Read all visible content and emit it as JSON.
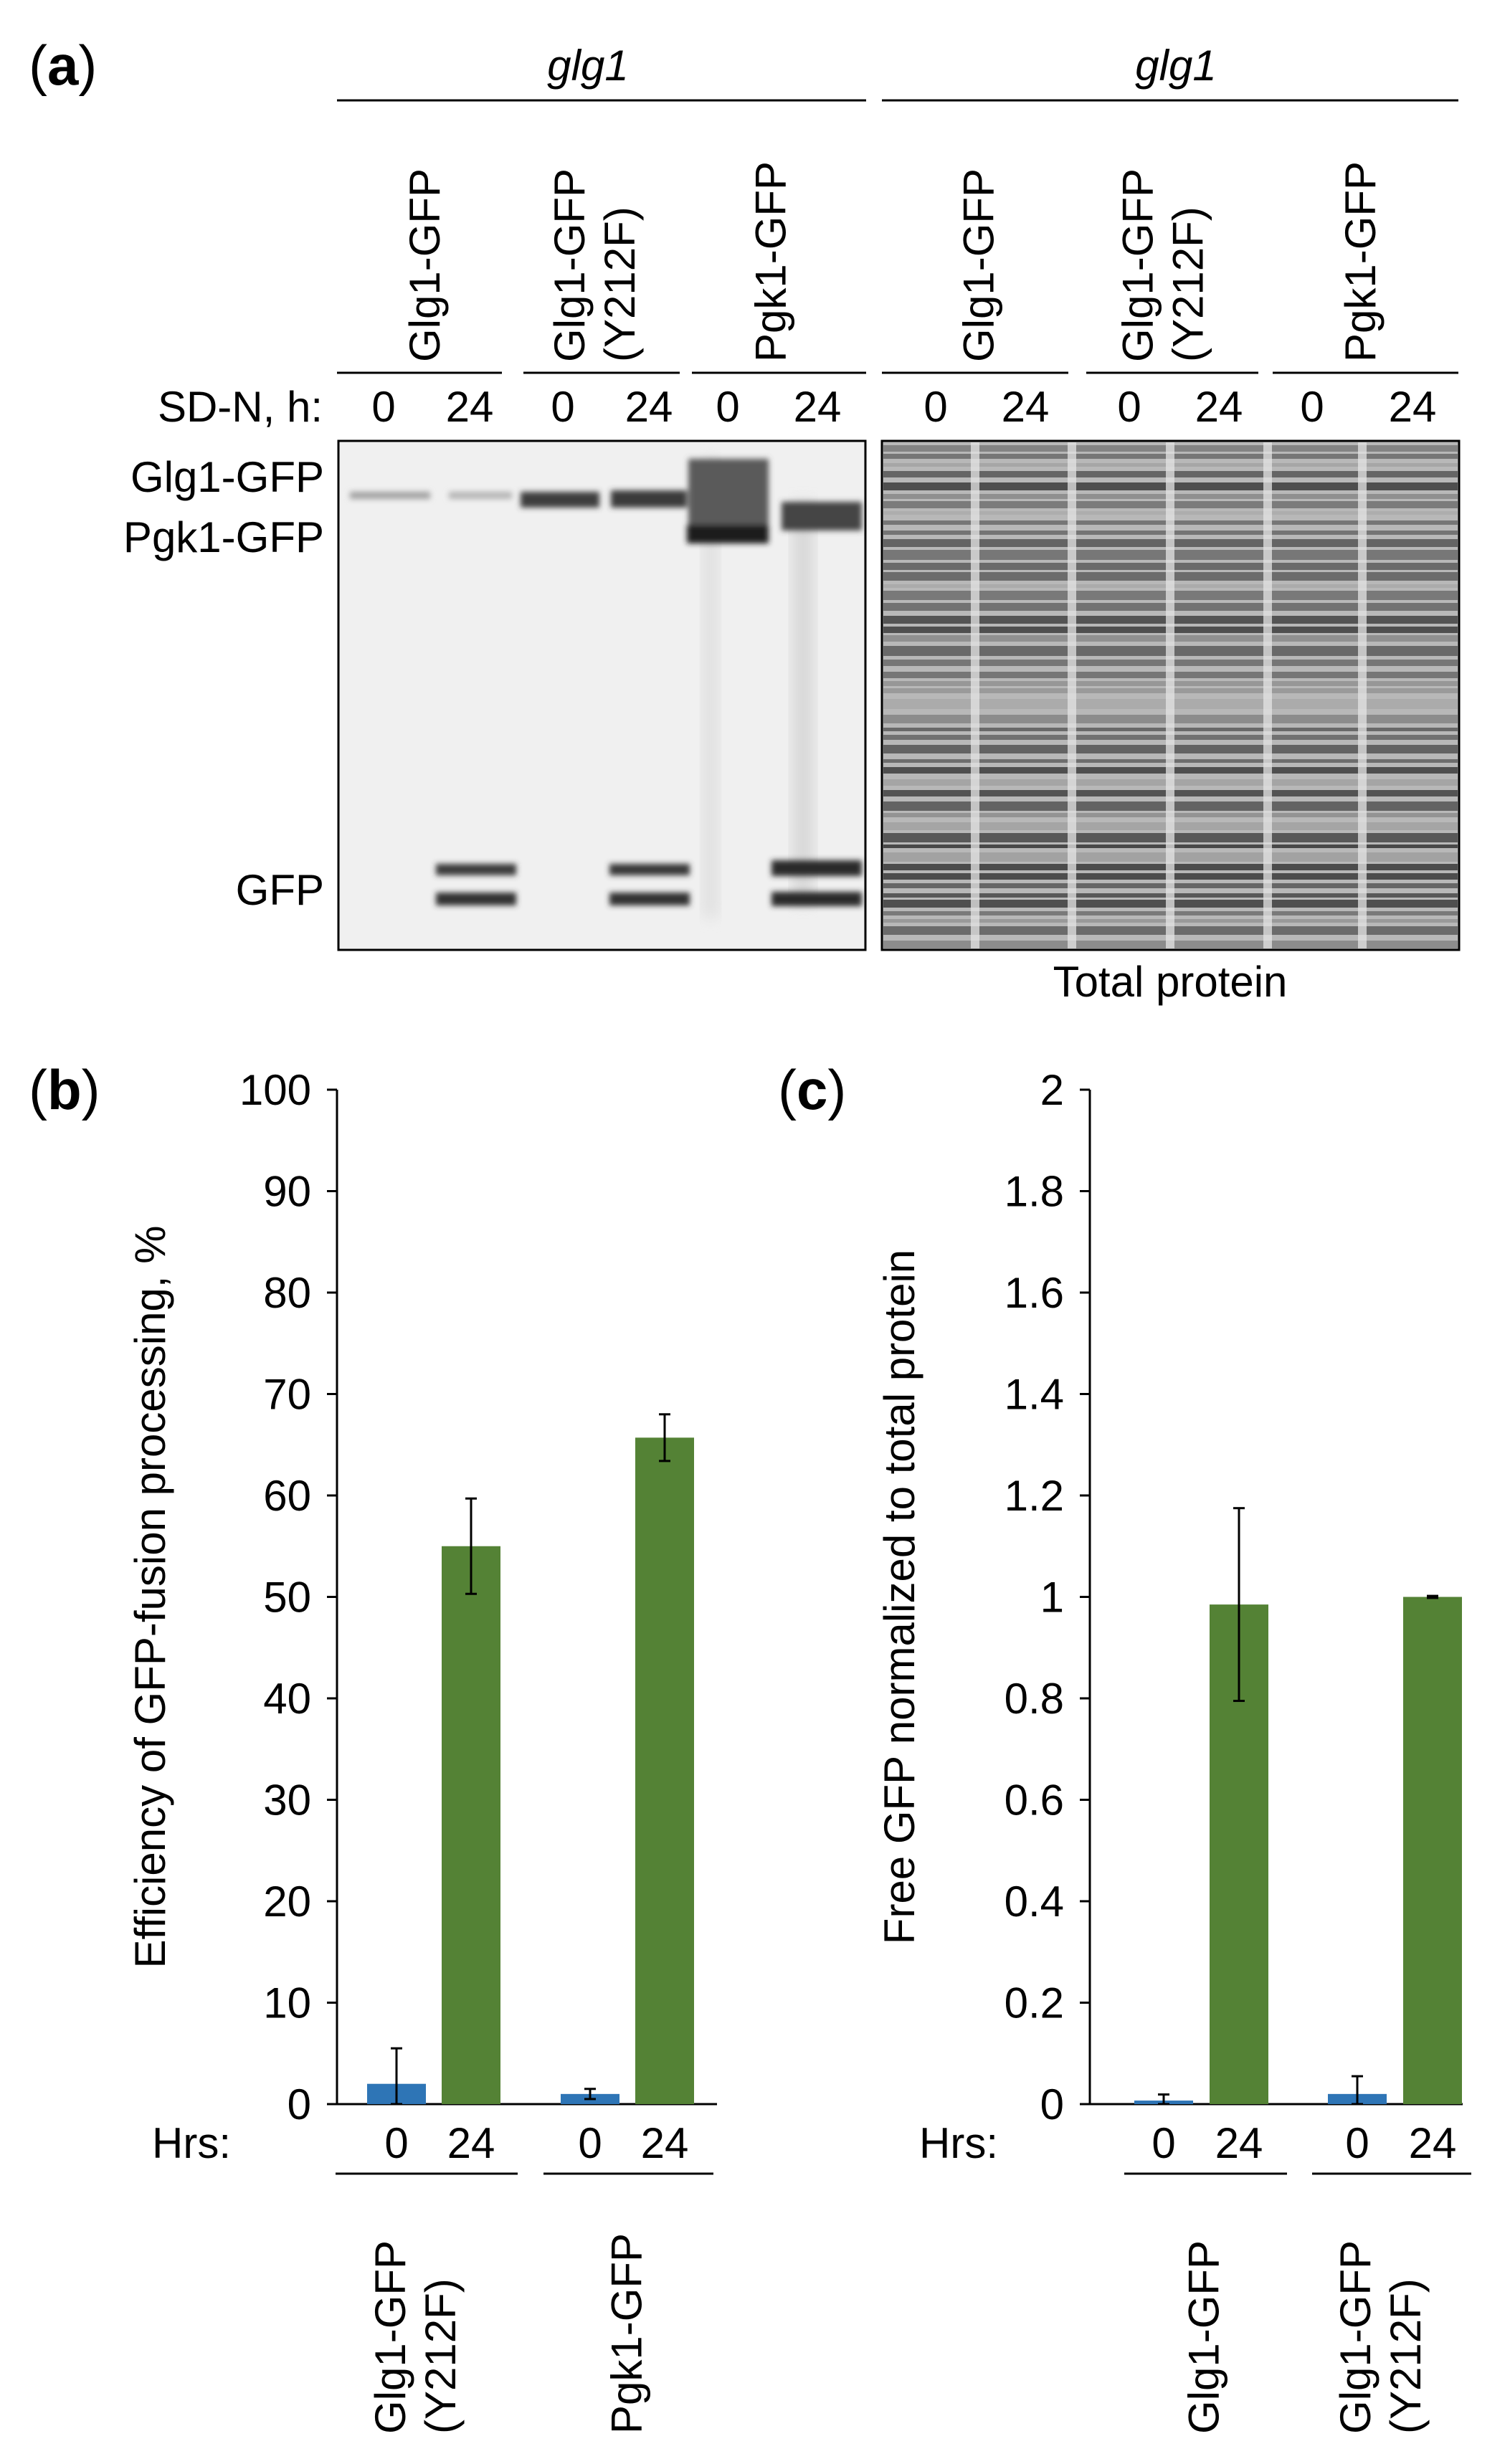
{
  "panel_a": {
    "label_letter": "a",
    "strain_left": "glg1",
    "strain_right": "glg1",
    "lane_groups_left": [
      {
        "line1": "Glg1-GFP",
        "line2": ""
      },
      {
        "line1": "Glg1-GFP",
        "line2": "(Y212F)"
      },
      {
        "line1": "Pgk1-GFP",
        "line2": ""
      }
    ],
    "lane_groups_right": [
      {
        "line1": "Glg1-GFP",
        "line2": ""
      },
      {
        "line1": "Glg1-GFP",
        "line2": "(Y212F)"
      },
      {
        "line1": "Pgk1-GFP",
        "line2": ""
      }
    ],
    "time_label": "SD-N, h:",
    "times": [
      "0",
      "24",
      "0",
      "24",
      "0",
      "24",
      "0",
      "24",
      "0",
      "24",
      "0",
      "24"
    ],
    "band_labels": [
      "Glg1-GFP",
      "Pgk1-GFP",
      "GFP"
    ],
    "total_protein_label": "Total protein"
  },
  "panel_b": {
    "label_letter": "b",
    "hrs_label": "Hrs:",
    "groups": [
      {
        "line1": "Glg1-GFP",
        "line2": "(Y212F)"
      },
      {
        "line1": "Pgk1-GFP",
        "line2": ""
      }
    ],
    "chart_data": {
      "type": "bar",
      "ylabel": "Efficiency of GFP-fusion processing, %",
      "ylim": [
        0,
        100
      ],
      "yticks": [
        "0",
        "10",
        "20",
        "30",
        "40",
        "50",
        "60",
        "70",
        "80",
        "90",
        "100"
      ],
      "categories": [
        "0",
        "24",
        "0",
        "24"
      ],
      "values": [
        2,
        55,
        1,
        65.7
      ],
      "errors": [
        3.5,
        4.7,
        0.5,
        2.3
      ],
      "colors": [
        "#2e75b6",
        "#548235",
        "#2e75b6",
        "#548235"
      ]
    }
  },
  "panel_c": {
    "label_letter": "c",
    "hrs_label": "Hrs:",
    "groups": [
      {
        "line1": "Glg1-GFP",
        "line2": ""
      },
      {
        "line1": "Glg1-GFP",
        "line2": "(Y212F)"
      }
    ],
    "chart_data": {
      "type": "bar",
      "ylabel": "Free GFP normalized to total protein",
      "ylim": [
        0,
        2
      ],
      "yticks": [
        "0",
        "0.2",
        "0.4",
        "0.6",
        "0.8",
        "1",
        "1.2",
        "1.4",
        "1.6",
        "1.8",
        "2"
      ],
      "categories": [
        "0",
        "24",
        "0",
        "24"
      ],
      "values": [
        0.007,
        0.985,
        0.02,
        1.0
      ],
      "errors": [
        0.012,
        0.19,
        0.035,
        0.002
      ],
      "colors": [
        "#2e75b6",
        "#548235",
        "#2e75b6",
        "#548235"
      ]
    }
  }
}
